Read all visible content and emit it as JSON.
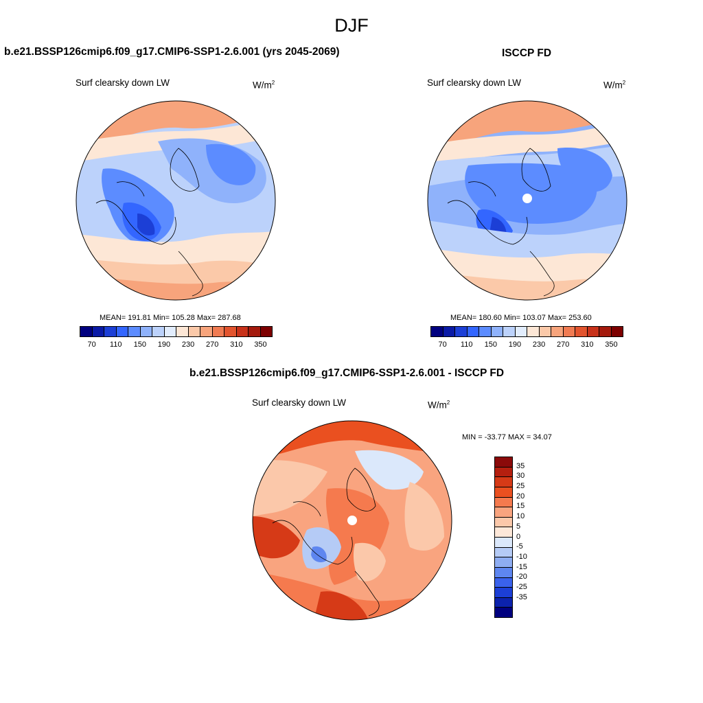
{
  "main_title": "DJF",
  "panels": [
    {
      "title": "b.e21.BSSP126cmip6.f09_g17.CMIP6-SSP1-2.6.001 (yrs 2045-2069)",
      "variable": "Surf clearsky down LW",
      "units": "W/m",
      "units_sup": "2",
      "stats": "MEAN= 191.81  Min= 105.28  Max= 287.68",
      "ticks": [
        "70",
        "110",
        "150",
        "190",
        "230",
        "270",
        "310",
        "350"
      ]
    },
    {
      "title": "ISCCP FD",
      "variable": "Surf clearsky down LW",
      "units": "W/m",
      "units_sup": "2",
      "stats": "MEAN= 180.60  Min= 103.07  Max= 253.60",
      "ticks": [
        "70",
        "110",
        "150",
        "190",
        "230",
        "270",
        "310",
        "350"
      ]
    }
  ],
  "diff_panel": {
    "title": "b.e21.BSSP126cmip6.f09_g17.CMIP6-SSP1-2.6.001 - ISCCP FD",
    "variable": "Surf clearsky down LW",
    "units": "W/m",
    "units_sup": "2",
    "minmax": "MIN = -33.77 MAX =  34.07",
    "ticks": [
      "35",
      "30",
      "25",
      "20",
      "15",
      "10",
      "5",
      "0",
      "-5",
      "-10",
      "-15",
      "-20",
      "-25",
      "-35"
    ]
  },
  "colors": {
    "abs_scale": [
      "#00007f",
      "#0a1aa6",
      "#1c3fd6",
      "#3366ff",
      "#5c8cff",
      "#8fb2fb",
      "#bcd2fb",
      "#e2edfd",
      "#fde7d6",
      "#fbc9a9",
      "#f7a47c",
      "#f07b52",
      "#e2542e",
      "#c8321a",
      "#a41a0d",
      "#7d0000"
    ],
    "diff_scale": [
      "#8b0a0a",
      "#b51f0f",
      "#d63a17",
      "#ea5020",
      "#f57a4e",
      "#f9a47f",
      "#fbc8aa",
      "#fde8d9",
      "#dbe8fb",
      "#b5cbf6",
      "#8eadf2",
      "#5e86f0",
      "#3a62ec",
      "#1c3fd6",
      "#0c22ad",
      "#00007f"
    ]
  }
}
